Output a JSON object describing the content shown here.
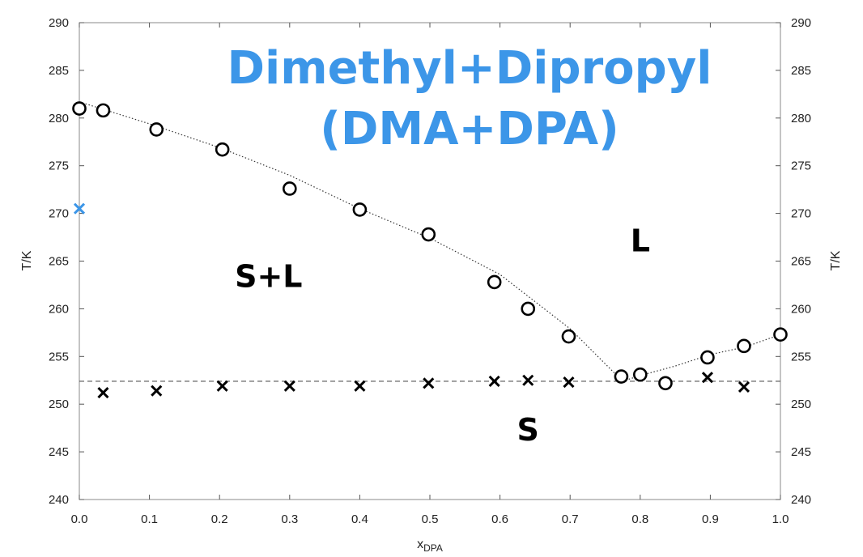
{
  "chart_data": {
    "type": "scatter",
    "title_lines": [
      "Dimethyl+Dipropyl",
      "(DMA+DPA)"
    ],
    "xlabel": "x",
    "xlabel_sub": "DPA",
    "ylabel": "T/K",
    "xlim": [
      0,
      1
    ],
    "ylim": [
      240,
      290
    ],
    "x_ticks": [
      "0.0",
      "0.1",
      "0.2",
      "0.3",
      "0.4",
      "0.5",
      "0.6",
      "0.7",
      "0.8",
      "0.9",
      "1.0"
    ],
    "y_ticks": [
      "240",
      "245",
      "250",
      "255",
      "260",
      "265",
      "270",
      "275",
      "280",
      "285",
      "290"
    ],
    "grid": false,
    "colors": {
      "accent": "#3c96e8",
      "marker": "#000000"
    },
    "region_labels": [
      {
        "text": "S+L",
        "x": 0.27,
        "y": 262.3
      },
      {
        "text": "L",
        "x": 0.8,
        "y": 266.0
      },
      {
        "text": "S",
        "x": 0.64,
        "y": 246.2
      }
    ],
    "series": [
      {
        "marker": "circle",
        "x": [
          0.0,
          0.034,
          0.11,
          0.204,
          0.3,
          0.4,
          0.498,
          0.592,
          0.64,
          0.698,
          0.773,
          0.8,
          0.836,
          0.896,
          0.948,
          1.0
        ],
        "y": [
          281.0,
          280.8,
          278.8,
          276.7,
          272.6,
          270.4,
          267.8,
          262.8,
          260.0,
          257.1,
          252.9,
          253.1,
          252.2,
          254.9,
          256.1,
          257.3
        ]
      },
      {
        "marker": "cross",
        "x": [
          0.034,
          0.11,
          0.204,
          0.3,
          0.4,
          0.498,
          0.592,
          0.64,
          0.698,
          0.896,
          0.948
        ],
        "y": [
          251.2,
          251.4,
          251.9,
          251.9,
          251.9,
          252.2,
          252.4,
          252.5,
          252.3,
          252.8,
          251.8
        ]
      },
      {
        "marker": "cross",
        "color": "#3c96e8",
        "x": [
          0.0
        ],
        "y": [
          270.5
        ]
      }
    ],
    "liquidus_curve_left": {
      "x": [
        0.0,
        0.1,
        0.2,
        0.3,
        0.4,
        0.5,
        0.6,
        0.7,
        0.775
      ],
      "y": [
        281.7,
        279.4,
        276.9,
        274.0,
        270.5,
        267.4,
        263.6,
        257.9,
        252.4
      ]
    },
    "liquidus_curve_right": {
      "x": [
        0.775,
        0.8,
        0.85,
        0.9,
        0.95,
        1.0
      ],
      "y": [
        252.4,
        253.0,
        254.0,
        255.2,
        256.0,
        257.3
      ]
    },
    "eutectic_line": {
      "y": 252.4,
      "style": "dashed"
    }
  }
}
